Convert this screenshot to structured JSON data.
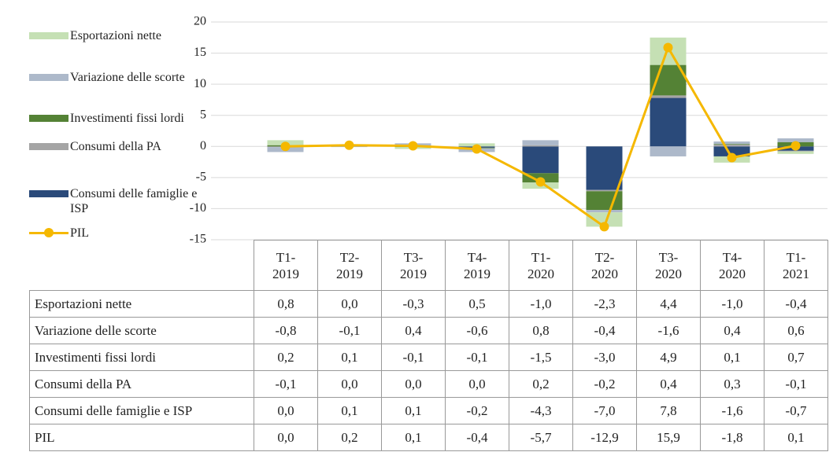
{
  "chart_data": {
    "type": "bar",
    "categories": [
      "T1-2019",
      "T2-2019",
      "T3-2019",
      "T4-2019",
      "T1-2020",
      "T2-2020",
      "T3-2020",
      "T4-2020",
      "T1-2021"
    ],
    "ylim": [
      -15,
      20
    ],
    "yticks": [
      -15,
      -10,
      -5,
      0,
      5,
      10,
      15,
      20
    ],
    "grid": true,
    "legend": "left",
    "series": [
      {
        "name": "Esportazioni nette",
        "type": "bar",
        "color": "#c5e0b4",
        "values": [
          0.8,
          0.0,
          -0.3,
          0.5,
          -1.0,
          -2.3,
          4.4,
          -1.0,
          -0.4
        ],
        "value_labels": [
          "0,8",
          "0,0",
          "-0,3",
          "0,5",
          "-1,0",
          "-2,3",
          "4,4",
          "-1,0",
          "-0,4"
        ]
      },
      {
        "name": "Variazione delle scorte",
        "type": "bar",
        "color": "#adb9ca",
        "values": [
          -0.8,
          -0.1,
          0.4,
          -0.6,
          0.8,
          -0.4,
          -1.6,
          0.4,
          0.6
        ],
        "value_labels": [
          "-0,8",
          "-0,1",
          "0,4",
          "-0,6",
          "0,8",
          "-0,4",
          "-1,6",
          "0,4",
          "0,6"
        ]
      },
      {
        "name": "Investimenti fissi lordi",
        "type": "bar",
        "color": "#548235",
        "values": [
          0.2,
          0.1,
          -0.1,
          -0.1,
          -1.5,
          -3.0,
          4.9,
          0.1,
          0.7
        ],
        "value_labels": [
          "0,2",
          "0,1",
          "-0,1",
          "-0,1",
          "-1,5",
          "-3,0",
          "4,9",
          "0,1",
          "0,7"
        ]
      },
      {
        "name": "Consumi della PA",
        "type": "bar",
        "color": "#a5a5a5",
        "values": [
          -0.1,
          0.0,
          0.0,
          0.0,
          0.2,
          -0.2,
          0.4,
          0.3,
          -0.1
        ],
        "value_labels": [
          "-0,1",
          "0,0",
          "0,0",
          "0,0",
          "0,2",
          "-0,2",
          "0,4",
          "0,3",
          "-0,1"
        ]
      },
      {
        "name": "Consumi delle famiglie e ISP",
        "type": "bar",
        "color": "#2a4a7a",
        "values": [
          0.0,
          0.1,
          0.1,
          -0.2,
          -4.3,
          -7.0,
          7.8,
          -1.6,
          -0.7
        ],
        "value_labels": [
          "0,0",
          "0,1",
          "0,1",
          "-0,2",
          "-4,3",
          "-7,0",
          "7,8",
          "-1,6",
          "-0,7"
        ]
      },
      {
        "name": "PIL",
        "type": "line",
        "color": "#f5b800",
        "values": [
          0.0,
          0.2,
          0.1,
          -0.4,
          -5.7,
          -12.9,
          15.9,
          -1.8,
          0.1
        ],
        "value_labels": [
          "0,0",
          "0,2",
          "0,1",
          "-0,4",
          "-5,7",
          "-12,9",
          "15,9",
          "-1,8",
          "0,1"
        ]
      }
    ]
  }
}
